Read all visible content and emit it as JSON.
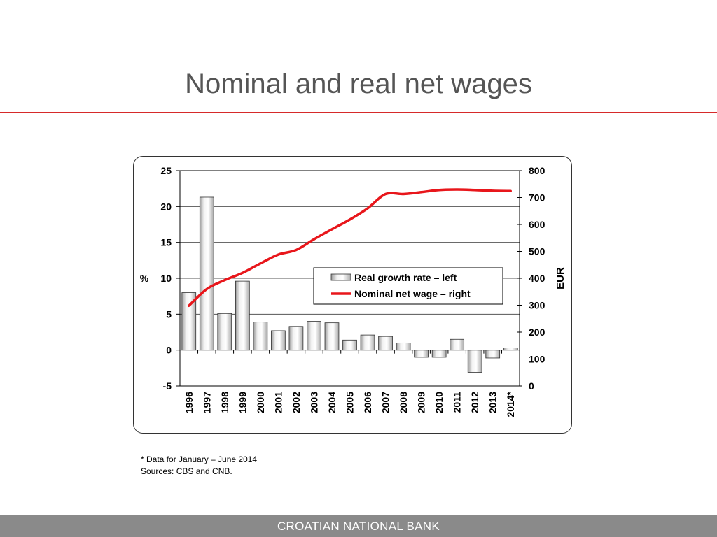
{
  "slide": {
    "title": "Nominal and real net wages",
    "footnote": "* Data for January – June 2014",
    "sources": "Sources: CBS and CNB.",
    "footer": "CROATIAN NATIONAL BANK"
  },
  "colors": {
    "title": "#555555",
    "rule": "#d62a2a",
    "line": "#e8161b",
    "footer_bg": "#8a8a8a"
  },
  "chart_data": {
    "type": "bar",
    "categories": [
      "1996",
      "1997",
      "1998",
      "1999",
      "2000",
      "2001",
      "2002",
      "2003",
      "2004",
      "2005",
      "2006",
      "2007",
      "2008",
      "2009",
      "2010",
      "2011",
      "2012",
      "2013",
      "2014*"
    ],
    "series": [
      {
        "name": "Real growth rate – left",
        "type": "bar",
        "axis": "left",
        "values": [
          8.0,
          21.3,
          5.1,
          9.6,
          3.9,
          2.7,
          3.3,
          4.0,
          3.8,
          1.4,
          2.1,
          1.9,
          1.0,
          -1.0,
          -1.0,
          1.5,
          -3.1,
          -1.1,
          0.3
        ]
      },
      {
        "name": "Nominal net wage – right",
        "type": "line",
        "axis": "right",
        "values": [
          298,
          360,
          393,
          420,
          455,
          488,
          505,
          545,
          582,
          618,
          660,
          713,
          713,
          720,
          728,
          730,
          728,
          725,
          724
        ]
      }
    ],
    "left_axis": {
      "label": "%",
      "min": -5,
      "max": 25,
      "ticks": [
        "-5",
        "0",
        "5",
        "10",
        "15",
        "20",
        "25"
      ]
    },
    "right_axis": {
      "label": "EUR",
      "min": 0,
      "max": 800,
      "ticks": [
        "0",
        "100",
        "200",
        "300",
        "400",
        "500",
        "600",
        "700",
        "800"
      ]
    },
    "grid": true,
    "legend_position": "center-right"
  }
}
